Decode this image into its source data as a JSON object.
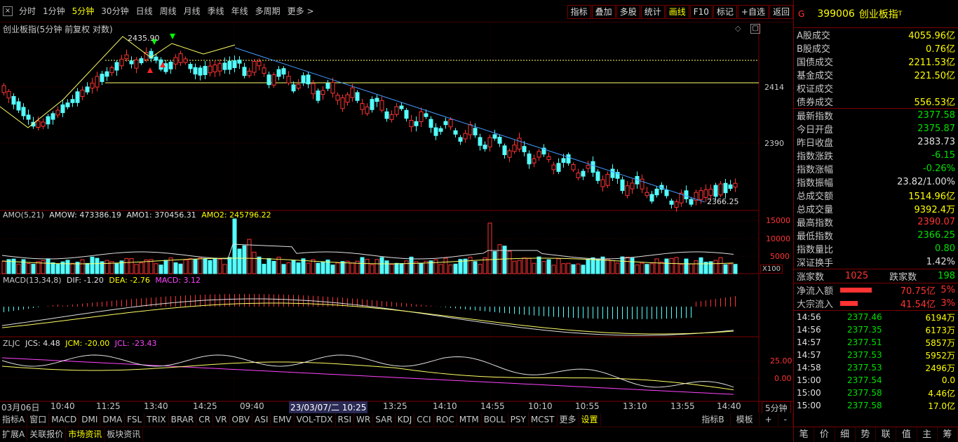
{
  "toolbar": {
    "periods": [
      "分时",
      "1分钟",
      "5分钟",
      "30分钟",
      "日线",
      "周线",
      "月线",
      "季线",
      "年线",
      "多周期",
      "更多 >"
    ],
    "active_period": "5分钟",
    "buttons": [
      "指标",
      "叠加",
      "多股",
      "统计",
      "画线",
      "F10",
      "标记",
      "+自选",
      "返回"
    ],
    "highlight_button": "画线"
  },
  "main_chart": {
    "title": "创业板指(5分钟 前复权 对数)",
    "y_labels": [
      "2414",
      "2390"
    ],
    "high_label": "2435.90",
    "low_label": "2366.25"
  },
  "amo": {
    "name": "AMO(5,21)",
    "amow": "AMOW: 473386.19",
    "amo1": "AMO1: 370456.31",
    "amo2": "AMO2: 245796.22",
    "y_labels": [
      "15000",
      "10000",
      "5000"
    ],
    "unit": "X100"
  },
  "macd": {
    "name": "MACD(13,34,8)",
    "dif": "DIF: -1.20",
    "dea": "DEA: -2.76",
    "macd": "MACD: 3.12"
  },
  "zljc": {
    "name": "ZLJC",
    "jcs": "JCS: 4.48",
    "jcm": "JCM: -20.00",
    "jcl": "JCL: -23.43",
    "y_labels": [
      "25.00",
      "0.00"
    ]
  },
  "time_axis": {
    "labels": [
      "03月06日",
      "10:40",
      "11:25",
      "13:40",
      "14:25",
      "09:40",
      "23/03/07/二 10:25",
      "13:25",
      "14:10",
      "14:55",
      "10:10",
      "10:55",
      "13:10",
      "13:55",
      "14:40"
    ],
    "period_label": "5分钟"
  },
  "indicator_tabs": {
    "items": [
      "指标A",
      "窗口",
      "MACD",
      "DMI",
      "DMA",
      "FSL",
      "TRIX",
      "BRAR",
      "CR",
      "VR",
      "OBV",
      "ASI",
      "EMV",
      "VOL-TDX",
      "RSI",
      "WR",
      "SAR",
      "KDJ",
      "CCI",
      "ROC",
      "MTM",
      "BOLL",
      "PSY",
      "MCST",
      "更多",
      "设置"
    ],
    "right_items": [
      "指标B",
      "模板",
      "+",
      "-"
    ]
  },
  "status_bar": {
    "items": [
      "扩展A",
      "关联报价",
      "市场资讯",
      "板块资讯"
    ]
  },
  "right_panel": {
    "tag": "G",
    "code": "399006",
    "name": "创业板指",
    "name_mark": "T",
    "turnover": [
      {
        "label": "A股成交",
        "value": "4055.96亿"
      },
      {
        "label": "B股成交",
        "value": "0.76亿"
      },
      {
        "label": "国债成交",
        "value": "2211.53亿"
      },
      {
        "label": "基金成交",
        "value": "221.50亿"
      },
      {
        "label": "权证成交",
        "value": ""
      },
      {
        "label": "债券成交",
        "value": "556.53亿"
      }
    ],
    "stats": [
      {
        "label": "最新指数",
        "value": "2377.58",
        "color": "#00e000"
      },
      {
        "label": "今日开盘",
        "value": "2375.87",
        "color": "#00e000"
      },
      {
        "label": "昨日收盘",
        "value": "2383.73",
        "color": "#e0e0e0"
      },
      {
        "label": "指数涨跌",
        "value": "-6.15",
        "color": "#00e000"
      },
      {
        "label": "指数涨幅",
        "value": "-0.26%",
        "color": "#00e000"
      },
      {
        "label": "指数振幅",
        "value": "23.82/1.00%",
        "color": "#e0e0e0"
      },
      {
        "label": "总成交额",
        "value": "1514.96亿",
        "color": "#ffff00"
      },
      {
        "label": "总成交量",
        "value": "9392.4万",
        "color": "#ffff00"
      },
      {
        "label": "最高指数",
        "value": "2390.07",
        "color": "#ff3333"
      },
      {
        "label": "最低指数",
        "value": "2366.25",
        "color": "#00e000"
      },
      {
        "label": "指数量比",
        "value": "0.80",
        "color": "#00e000"
      },
      {
        "label": "深证换手",
        "value": "1.42%",
        "color": "#e0e0e0"
      }
    ],
    "updown": {
      "up_label": "涨家数",
      "up_value": "1025",
      "down_label": "跌家数",
      "down_value": "198"
    },
    "flows": [
      {
        "label": "净流入额",
        "value": "70.75亿",
        "pct": "5%",
        "bar": 0.9
      },
      {
        "label": "大宗流入",
        "value": "41.54亿",
        "pct": "3%",
        "bar": 0.5
      }
    ],
    "trades": [
      {
        "time": "14:56",
        "price": "2377.46",
        "vol": "6194万"
      },
      {
        "time": "14:56",
        "price": "2377.35",
        "vol": "6173万"
      },
      {
        "time": "14:57",
        "price": "2377.51",
        "vol": "5857万"
      },
      {
        "time": "14:57",
        "price": "2377.53",
        "vol": "5952万"
      },
      {
        "time": "14:58",
        "price": "2377.53",
        "vol": "2496万"
      },
      {
        "time": "15:00",
        "price": "2377.54",
        "vol": "0.0"
      },
      {
        "time": "15:00",
        "price": "2377.58",
        "vol": "4.46亿"
      },
      {
        "time": "15:00",
        "price": "2377.58",
        "vol": "17.0亿"
      }
    ],
    "tabs": [
      "笔",
      "价",
      "细",
      "势",
      "联",
      "值",
      "主",
      "筹"
    ]
  }
}
